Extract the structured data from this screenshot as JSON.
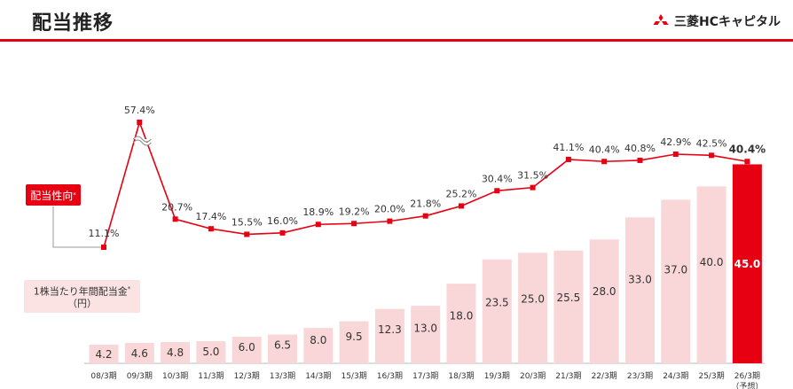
{
  "header": {
    "title": "配当推移",
    "company": "三菱HCキャピタル"
  },
  "colors": {
    "accent": "#e60012",
    "bar": "#f9d7d9",
    "bar_highlight": "#e60012",
    "line": "#e60012",
    "text": "#333333"
  },
  "legend": {
    "payout_label": "配当性向",
    "payout_mark": "*",
    "dividend_label": "1株当たり年間配当金",
    "dividend_mark": "*",
    "dividend_unit": "（円）"
  },
  "chart_data": {
    "type": "bar+line",
    "categories": [
      "08/3期",
      "09/3期",
      "10/3期",
      "11/3期",
      "12/3期",
      "13/3期",
      "14/3期",
      "15/3期",
      "16/3期",
      "17/3期",
      "18/3期",
      "19/3期",
      "20/3期",
      "21/3期",
      "22/3期",
      "23/3期",
      "24/3期",
      "25/3期",
      "26/3期"
    ],
    "forecast_note": "（予想）",
    "series": [
      {
        "name": "1株当たり年間配当金（円）",
        "type": "bar",
        "values": [
          4.2,
          4.6,
          4.8,
          5.0,
          6.0,
          6.5,
          8.0,
          9.5,
          12.3,
          13.0,
          18.0,
          23.5,
          25.0,
          25.5,
          28.0,
          33.0,
          37.0,
          40.0,
          45.0
        ],
        "labels": [
          "4.2",
          "4.6",
          "4.8",
          "5.0",
          "6.0",
          "6.5",
          "8.0",
          "9.5",
          "12.3",
          "13.0",
          "18.0",
          "23.5",
          "25.0",
          "25.5",
          "28.0",
          "33.0",
          "37.0",
          "40.0",
          "45.0"
        ]
      },
      {
        "name": "配当性向",
        "type": "line",
        "values": [
          11.1,
          57.4,
          20.7,
          17.4,
          15.5,
          16.0,
          18.9,
          19.2,
          20.0,
          21.8,
          25.2,
          30.4,
          31.5,
          41.1,
          40.4,
          40.8,
          42.9,
          42.5,
          40.4
        ],
        "labels": [
          "11.1%",
          "57.4%",
          "20.7%",
          "17.4%",
          "15.5%",
          "16.0%",
          "18.9%",
          "19.2%",
          "20.0%",
          "21.8%",
          "25.2%",
          "30.4%",
          "31.5%",
          "41.1%",
          "40.4%",
          "40.8%",
          "42.9%",
          "42.5%",
          "40.4%"
        ]
      }
    ],
    "highlight_category": "26/3期",
    "axis_break": "57.4%"
  }
}
